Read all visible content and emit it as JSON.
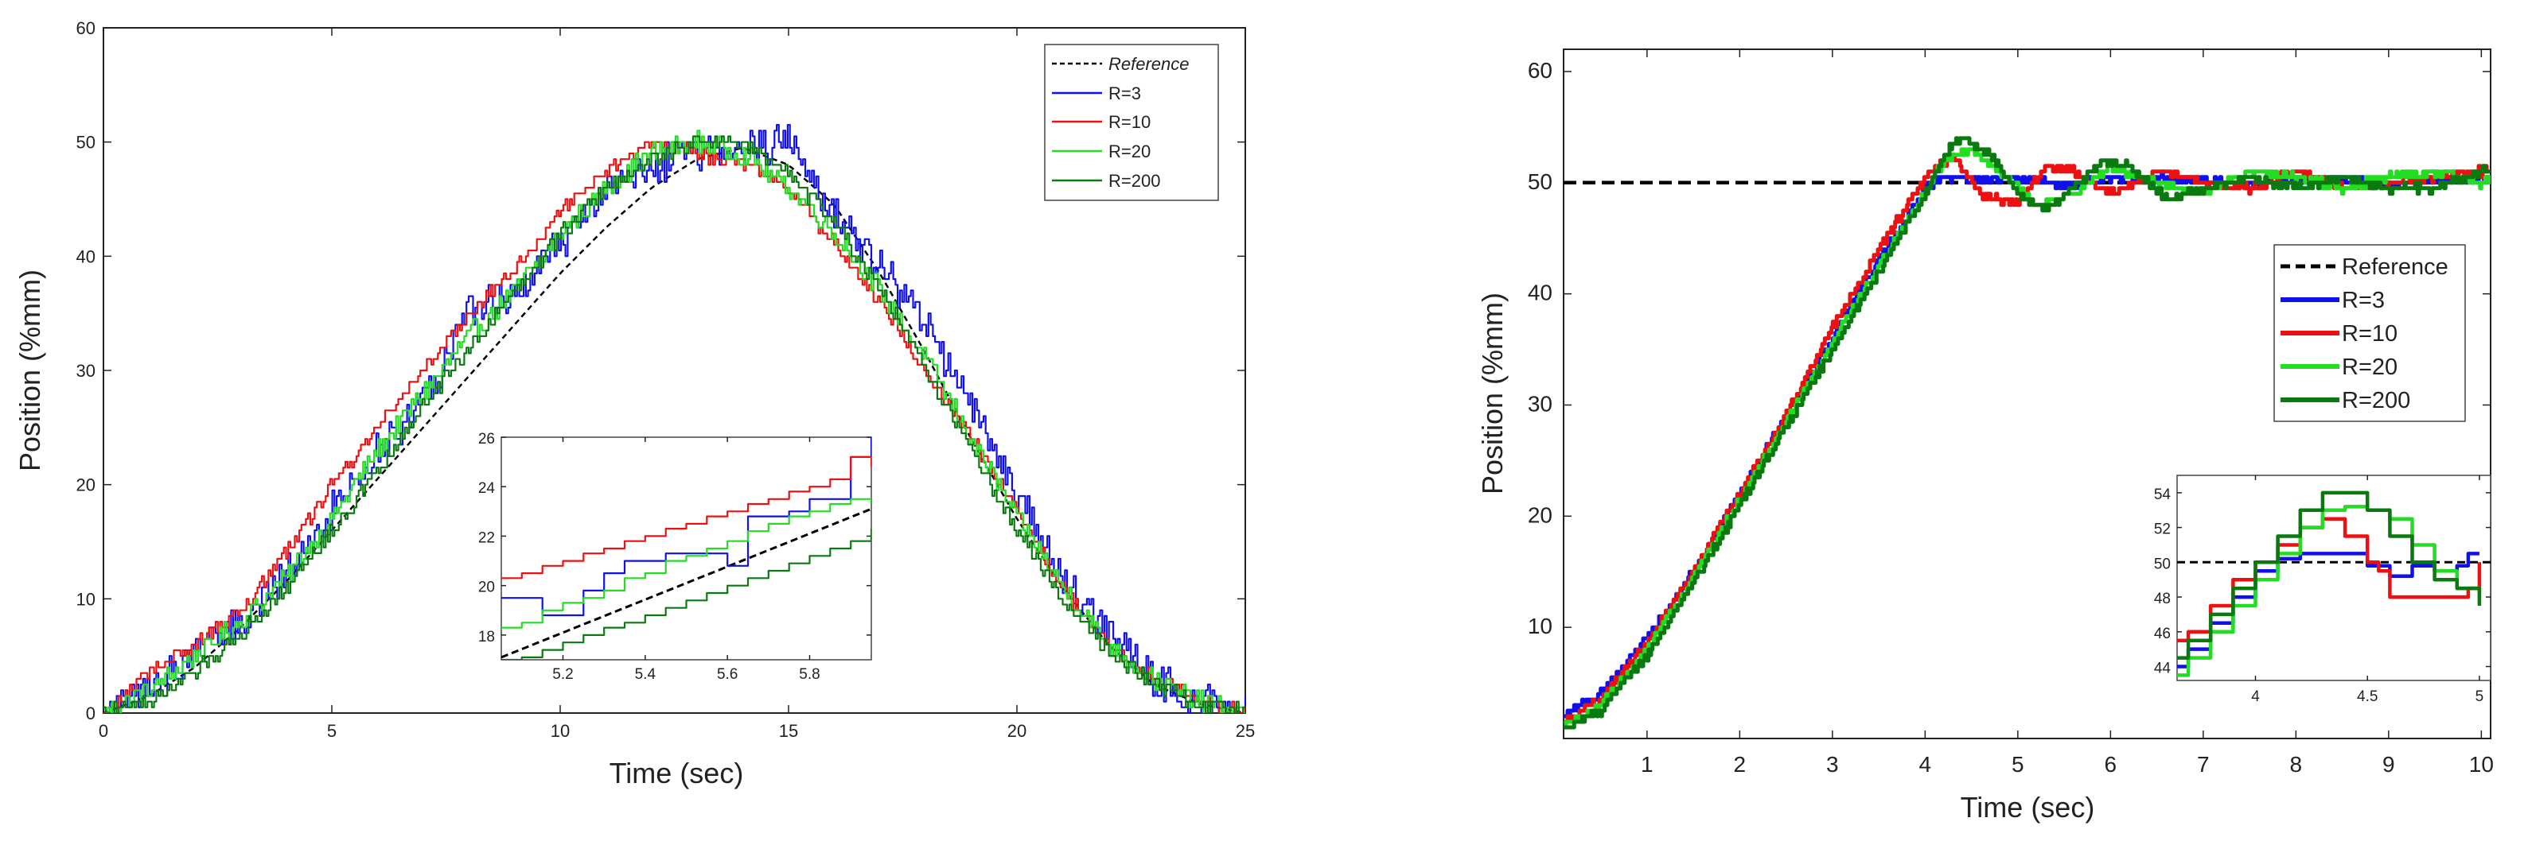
{
  "chart_data": [
    {
      "type": "line",
      "xlabel": "Time (sec)",
      "ylabel": "Position (%mm)",
      "xlim": [
        0,
        25
      ],
      "ylim": [
        0,
        60
      ],
      "xticks": [
        0,
        5,
        10,
        15,
        20,
        25
      ],
      "yticks": [
        0,
        10,
        20,
        30,
        40,
        50,
        60
      ],
      "legend": {
        "position": "top-right",
        "entries": [
          {
            "label": "Reference",
            "color": "#000000",
            "style": "dashed"
          },
          {
            "label": "R=3",
            "color": "#1010ee",
            "style": "solid"
          },
          {
            "label": "R=10",
            "color": "#ee1010",
            "style": "solid"
          },
          {
            "label": "R=20",
            "color": "#22dd22",
            "style": "solid"
          },
          {
            "label": "R=200",
            "color": "#0a7a10",
            "style": "solid"
          }
        ]
      },
      "series": [
        {
          "name": "Reference",
          "x": [
            0,
            1,
            2,
            3,
            4,
            5,
            6,
            7,
            8,
            9,
            10,
            11,
            12,
            13,
            14,
            15,
            16,
            17,
            18,
            19,
            20,
            21,
            22,
            23,
            24,
            25
          ],
          "y": [
            0,
            1.5,
            4,
            7.5,
            11.5,
            16,
            20.5,
            25,
            29.5,
            34,
            38.5,
            42.5,
            46,
            48.5,
            49.5,
            48,
            44.5,
            38.5,
            31.5,
            24,
            17,
            11,
            6,
            2.5,
            0.8,
            0
          ]
        },
        {
          "name": "R=3",
          "x": [
            0,
            1,
            2,
            3,
            4,
            5,
            6,
            7,
            8,
            9,
            10,
            11,
            12,
            13,
            14,
            15,
            16,
            17,
            18,
            19,
            20,
            21,
            22,
            23,
            24,
            25
          ],
          "y": [
            0,
            2,
            5,
            8,
            12,
            18,
            23,
            27,
            35,
            37,
            41,
            46,
            48,
            49,
            49.5,
            50,
            44,
            39,
            34,
            27,
            19,
            12,
            7,
            3,
            1,
            0
          ]
        },
        {
          "name": "R=10",
          "x": [
            0,
            1,
            2,
            3,
            4,
            5,
            6,
            7,
            8,
            9,
            10,
            11,
            12,
            13,
            14,
            15,
            16,
            17,
            18,
            19,
            20,
            21,
            22,
            23,
            24,
            25
          ],
          "y": [
            0,
            3.5,
            6,
            9,
            14,
            20,
            25,
            30,
            35,
            39,
            44,
            47.5,
            50,
            49,
            48,
            46,
            41,
            36,
            30,
            24,
            18,
            11,
            6,
            3,
            1,
            0
          ]
        },
        {
          "name": "R=20",
          "x": [
            0,
            1,
            2,
            3,
            4,
            5,
            6,
            7,
            8,
            9,
            10,
            11,
            12,
            13,
            14,
            15,
            16,
            17,
            18,
            19,
            20,
            21,
            22,
            23,
            24,
            25
          ],
          "y": [
            0,
            2,
            5,
            8,
            12,
            17,
            23,
            28,
            33,
            37,
            42,
            46,
            49,
            50,
            49,
            46,
            42,
            37,
            31,
            24,
            17,
            11,
            6,
            3,
            1,
            0
          ]
        },
        {
          "name": "R=200",
          "x": [
            0,
            1,
            2,
            3,
            4,
            5,
            6,
            7,
            8,
            9,
            10,
            11,
            12,
            13,
            14,
            15,
            16,
            17,
            18,
            19,
            20,
            21,
            22,
            23,
            24,
            25
          ],
          "y": [
            0,
            1,
            3.5,
            7,
            11,
            16,
            21,
            27,
            32,
            37,
            42,
            46,
            48.5,
            50,
            50,
            47,
            43,
            37,
            30,
            23,
            16,
            10,
            5.5,
            2.5,
            0.8,
            0
          ]
        }
      ],
      "inset": {
        "xlim": [
          5.05,
          5.95
        ],
        "ylim": [
          17,
          26
        ],
        "xticks": [
          5.2,
          5.4,
          5.6,
          5.8
        ],
        "xtick_labels": [
          "5.2",
          "5.4",
          "5.6",
          "5.8"
        ],
        "yticks": [
          18,
          20,
          22,
          24,
          26
        ],
        "series": [
          {
            "name": "Reference",
            "x": [
              5.05,
              5.95
            ],
            "y": [
              17.1,
              23.1
            ]
          },
          {
            "name": "R=3",
            "x": [
              5.05,
              5.1,
              5.15,
              5.2,
              5.25,
              5.3,
              5.35,
              5.4,
              5.45,
              5.5,
              5.55,
              5.6,
              5.65,
              5.7,
              5.75,
              5.8,
              5.85,
              5.9,
              5.95
            ],
            "y": [
              19.5,
              19.5,
              18.8,
              18.8,
              19.8,
              20.5,
              21,
              21,
              21.3,
              21.3,
              21.3,
              20.8,
              22.8,
              22.8,
              23,
              23.5,
              23.5,
              25.2,
              26
            ]
          },
          {
            "name": "R=10",
            "x": [
              5.05,
              5.1,
              5.15,
              5.2,
              5.25,
              5.3,
              5.35,
              5.4,
              5.45,
              5.5,
              5.55,
              5.6,
              5.65,
              5.7,
              5.75,
              5.8,
              5.85,
              5.9,
              5.95
            ],
            "y": [
              20.3,
              20.5,
              20.8,
              21,
              21.3,
              21.5,
              21.8,
              22,
              22.3,
              22.5,
              22.8,
              23,
              23.3,
              23.5,
              23.8,
              24,
              24.3,
              25.2,
              24.8
            ]
          },
          {
            "name": "R=20",
            "x": [
              5.05,
              5.1,
              5.15,
              5.2,
              5.25,
              5.3,
              5.35,
              5.4,
              5.45,
              5.5,
              5.55,
              5.6,
              5.65,
              5.7,
              5.75,
              5.8,
              5.85,
              5.9,
              5.95
            ],
            "y": [
              18.3,
              18.5,
              19,
              19.3,
              19.5,
              19.8,
              20.3,
              20.5,
              21,
              21.2,
              21.5,
              21.8,
              22.2,
              22.5,
              22.8,
              23,
              23.3,
              23.5,
              23.3
            ]
          },
          {
            "name": "R=200",
            "x": [
              5.05,
              5.1,
              5.15,
              5.2,
              5.25,
              5.3,
              5.35,
              5.4,
              5.45,
              5.5,
              5.55,
              5.6,
              5.65,
              5.7,
              5.75,
              5.8,
              5.85,
              5.9,
              5.95
            ],
            "y": [
              17,
              17.1,
              17.4,
              17.7,
              18,
              18.3,
              18.5,
              18.8,
              19.1,
              19.4,
              19.7,
              20,
              20.3,
              20.6,
              20.9,
              21.2,
              21.5,
              21.8,
              22.3
            ]
          }
        ]
      }
    },
    {
      "type": "line",
      "xlabel": "Time (sec)",
      "ylabel": "Position (%mm)",
      "xlim": [
        0.1,
        10.1
      ],
      "ylim": [
        0,
        62
      ],
      "xticks": [
        1,
        2,
        3,
        4,
        5,
        6,
        7,
        8,
        9,
        10
      ],
      "yticks": [
        10,
        20,
        30,
        40,
        50,
        60
      ],
      "legend": {
        "position": "right",
        "entries": [
          {
            "label": "Reference",
            "color": "#000000",
            "style": "dashed"
          },
          {
            "label": "R=3",
            "color": "#1010ee",
            "style": "solid"
          },
          {
            "label": "R=10",
            "color": "#ee1010",
            "style": "solid"
          },
          {
            "label": "R=20",
            "color": "#22dd22",
            "style": "solid"
          },
          {
            "label": "R=200",
            "color": "#0a7a10",
            "style": "solid"
          }
        ]
      },
      "series": [
        {
          "name": "Reference",
          "x": [
            0.1,
            10.1
          ],
          "y": [
            50,
            50
          ]
        },
        {
          "name": "R=3",
          "x": [
            0.1,
            0.5,
            1,
            1.5,
            2,
            2.5,
            3,
            3.5,
            4,
            4.2,
            4.5,
            5,
            5.5,
            6,
            6.5,
            7,
            7.5,
            8,
            8.5,
            9,
            9.5,
            10,
            10.1
          ],
          "y": [
            2,
            4,
            9,
            15,
            22,
            29,
            36,
            43,
            49.5,
            50.5,
            50.2,
            50.5,
            49.8,
            50.3,
            50.5,
            50.2,
            49.8,
            50.2,
            50.3,
            49.8,
            50.2,
            50.3,
            50.4
          ]
        },
        {
          "name": "R=10",
          "x": [
            0.1,
            0.5,
            1,
            1.5,
            2,
            2.5,
            3,
            3.5,
            4,
            4.3,
            4.6,
            5,
            5.3,
            5.6,
            6,
            6.5,
            7,
            7.5,
            8,
            8.5,
            9,
            9.5,
            10,
            10.1
          ],
          "y": [
            1.5,
            3.5,
            8.5,
            15,
            22,
            29,
            37,
            44,
            50.5,
            52.5,
            49,
            48,
            51.5,
            51,
            49,
            51,
            50,
            49.5,
            51,
            49.5,
            50,
            50.5,
            51,
            51
          ]
        },
        {
          "name": "R=20",
          "x": [
            0.1,
            0.5,
            1,
            1.5,
            2,
            2.5,
            3,
            3.5,
            4,
            4.2,
            4.5,
            4.8,
            5.2,
            5.6,
            6,
            6.5,
            7,
            7.5,
            8,
            8.5,
            9,
            9.5,
            10,
            10.1
          ],
          "y": [
            1,
            3,
            8,
            14.5,
            21.5,
            28.5,
            35.5,
            42.5,
            49,
            52,
            53,
            51,
            48,
            49,
            51.5,
            50,
            49,
            51,
            50.5,
            49.5,
            50.5,
            51,
            50,
            50.5
          ]
        },
        {
          "name": "R=200",
          "x": [
            0.1,
            0.5,
            1,
            1.5,
            2,
            2.5,
            3,
            3.5,
            4,
            4.2,
            4.4,
            4.7,
            5,
            5.3,
            5.6,
            5.9,
            6.2,
            6.6,
            7,
            7.5,
            8,
            8.5,
            9,
            9.5,
            10,
            10.1
          ],
          "y": [
            1,
            2.5,
            7.5,
            14,
            21,
            28,
            35,
            42,
            49,
            52.5,
            54,
            52.5,
            49,
            47.5,
            49.5,
            52,
            51.5,
            48.5,
            49.5,
            50.5,
            49.5,
            50.5,
            49.5,
            49.5,
            51,
            51.2
          ]
        }
      ],
      "inset": {
        "xlim": [
          3.65,
          5.05
        ],
        "ylim": [
          43.2,
          55
        ],
        "xticks": [
          4,
          4.5,
          5
        ],
        "xtick_labels": [
          "4",
          "4.5",
          "5"
        ],
        "yticks": [
          44,
          46,
          48,
          50,
          52,
          54
        ],
        "series": [
          {
            "name": "Reference",
            "x": [
              3.65,
              5.05
            ],
            "y": [
              50,
              50
            ]
          },
          {
            "name": "R=3",
            "x": [
              3.65,
              3.7,
              3.8,
              3.9,
              4,
              4.1,
              4.2,
              4.3,
              4.4,
              4.5,
              4.6,
              4.7,
              4.8,
              4.9,
              4.95,
              5.0
            ],
            "y": [
              44,
              45,
              46.5,
              48,
              49.5,
              50.2,
              50.5,
              50.5,
              50.5,
              49.8,
              49.2,
              49.8,
              49.5,
              49.8,
              50.5,
              50.5
            ]
          },
          {
            "name": "R=10",
            "x": [
              3.65,
              3.7,
              3.8,
              3.9,
              4,
              4.1,
              4.2,
              4.3,
              4.4,
              4.5,
              4.55,
              4.6,
              4.7,
              4.8,
              4.9,
              4.95,
              5.0
            ],
            "y": [
              45.5,
              46,
              47.5,
              49,
              50,
              51,
              52,
              52.5,
              51.5,
              50,
              49.5,
              48,
              48,
              48,
              48,
              48.5,
              50
            ]
          },
          {
            "name": "R=20",
            "x": [
              3.65,
              3.7,
              3.8,
              3.9,
              4,
              4.1,
              4.2,
              4.3,
              4.4,
              4.5,
              4.6,
              4.7,
              4.8,
              4.9,
              5.0
            ],
            "y": [
              43.5,
              44.5,
              46,
              47.5,
              49,
              50.5,
              52,
              53,
              53.2,
              53,
              52.5,
              51,
              49.5,
              48.5,
              48
            ]
          },
          {
            "name": "R=200",
            "x": [
              3.65,
              3.7,
              3.8,
              3.9,
              4,
              4.1,
              4.2,
              4.3,
              4.4,
              4.5,
              4.6,
              4.7,
              4.8,
              4.9,
              5.0
            ],
            "y": [
              44.5,
              45.5,
              47,
              48.5,
              50,
              51.5,
              53,
              54,
              54,
              53,
              51.5,
              50,
              49,
              48.5,
              47.5
            ]
          }
        ]
      }
    }
  ]
}
